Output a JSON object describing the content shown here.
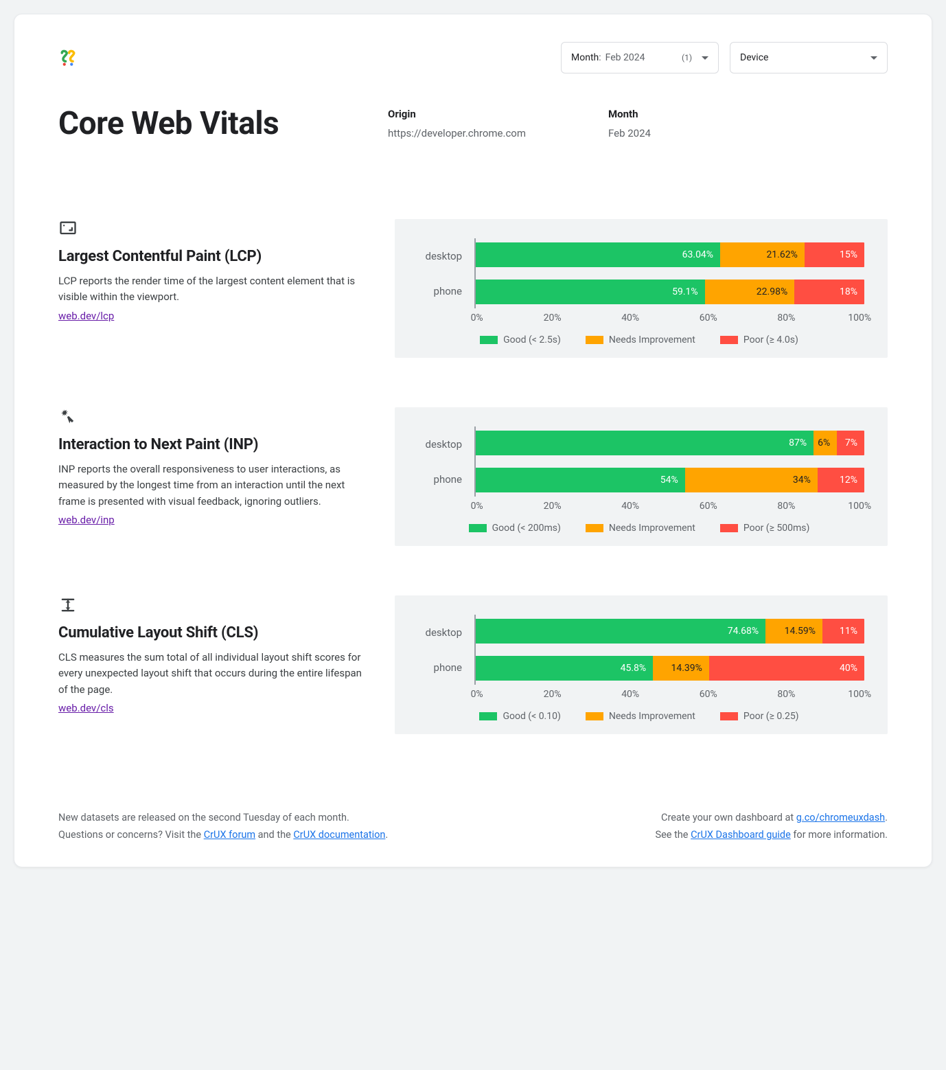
{
  "colors": {
    "good": "#1cc465",
    "ni": "#ffa400",
    "poor": "#ff4e42",
    "chart_bg": "#f1f3f4",
    "axis": "#9aa0a6",
    "link_purple": "#681da8",
    "link_blue": "#1a73e8"
  },
  "filters": {
    "month": {
      "label": "Month",
      "value": "Feb 2024",
      "count": "(1)"
    },
    "device": {
      "label": "Device"
    }
  },
  "title": "Core Web Vitals",
  "meta": {
    "origin": {
      "label": "Origin",
      "value": "https://developer.chrome.com"
    },
    "month": {
      "label": "Month",
      "value": "Feb 2024"
    }
  },
  "xaxis": {
    "ticks": [
      "0%",
      "20%",
      "40%",
      "60%",
      "80%",
      "100%"
    ],
    "positions": [
      0,
      20,
      40,
      60,
      80,
      100
    ]
  },
  "metrics": [
    {
      "id": "lcp",
      "title": "Largest Contentful Paint (LCP)",
      "desc": "LCP reports the render time of the largest content element that is visible within the viewport.",
      "link": "web.dev/lcp",
      "icon": "lcp",
      "rows": [
        {
          "label": "desktop",
          "good": 63.04,
          "good_label": "63.04%",
          "ni": 21.62,
          "ni_label": "21.62%",
          "poor": 15.34,
          "poor_label": "15%"
        },
        {
          "label": "phone",
          "good": 59.1,
          "good_label": "59.1%",
          "ni": 22.98,
          "ni_label": "22.98%",
          "poor": 17.92,
          "poor_label": "18%"
        }
      ],
      "legend": [
        {
          "color": "good",
          "label": "Good (< 2.5s)"
        },
        {
          "color": "ni",
          "label": "Needs Improvement"
        },
        {
          "color": "poor",
          "label": "Poor (≥ 4.0s)"
        }
      ]
    },
    {
      "id": "inp",
      "title": "Interaction to Next Paint (INP)",
      "desc": "INP reports the overall responsiveness to user interactions, as measured by the longest time from an interaction until the next frame is presented with visual feedback, ignoring outliers.",
      "link": "web.dev/inp",
      "icon": "inp",
      "rows": [
        {
          "label": "desktop",
          "good": 87,
          "good_label": "87%",
          "ni": 6,
          "ni_label": "6%",
          "poor": 7,
          "poor_label": "7%"
        },
        {
          "label": "phone",
          "good": 54,
          "good_label": "54%",
          "ni": 34,
          "ni_label": "34%",
          "poor": 12,
          "poor_label": "12%"
        }
      ],
      "legend": [
        {
          "color": "good",
          "label": "Good (< 200ms)"
        },
        {
          "color": "ni",
          "label": "Needs Improvement",
          "truncate": true
        },
        {
          "color": "poor",
          "label": "Poor (≥ 500ms)"
        }
      ]
    },
    {
      "id": "cls",
      "title": "Cumulative Layout Shift (CLS)",
      "desc": "CLS measures the sum total of all individual layout shift scores for every unexpected layout shift that occurs during the entire lifespan of the page.",
      "link": "web.dev/cls",
      "icon": "cls",
      "rows": [
        {
          "label": "desktop",
          "good": 74.68,
          "good_label": "74.68%",
          "ni": 14.59,
          "ni_label": "14.59%",
          "poor": 10.73,
          "poor_label": "11%"
        },
        {
          "label": "phone",
          "good": 45.8,
          "good_label": "45.8%",
          "ni": 14.39,
          "ni_label": "14.39%",
          "poor": 39.81,
          "poor_label": "40%"
        }
      ],
      "legend": [
        {
          "color": "good",
          "label": "Good (< 0.10)"
        },
        {
          "color": "ni",
          "label": "Needs Improvement"
        },
        {
          "color": "poor",
          "label": "Poor (≥ 0.25)"
        }
      ]
    }
  ],
  "footer": {
    "left_line1": "New datasets are released on the second Tuesday of each month.",
    "left_line2_a": "Questions or concerns? Visit the ",
    "left_link1": "CrUX forum",
    "left_line2_b": " and the ",
    "left_link2": "CrUX documentation",
    "left_line2_c": ".",
    "right_line1_a": "Create your own dashboard at ",
    "right_link1": "g.co/chromeuxdash",
    "right_line1_b": ".",
    "right_line2_a": "See the ",
    "right_link2": "CrUX Dashboard guide",
    "right_line2_b": " for more information."
  }
}
